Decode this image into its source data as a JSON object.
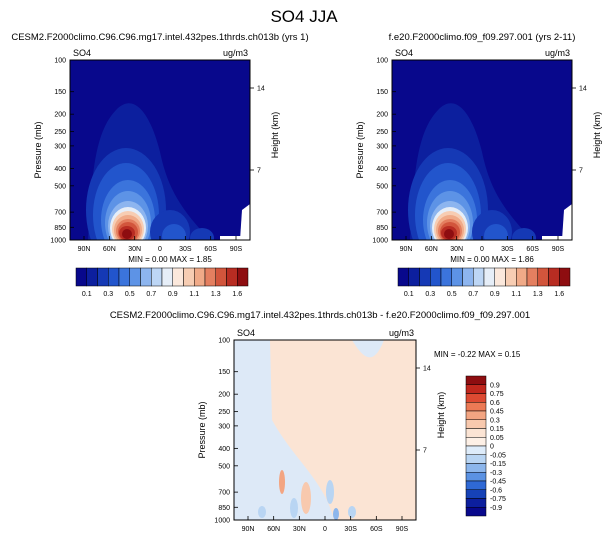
{
  "page_title": "SO4 JJA",
  "chart_data": [
    {
      "type": "heatmap",
      "title": "CESM2.F2000climo.C96.C96.mg17.intel.432pes.1thrds.ch013b (yrs 1)",
      "variable": "SO4",
      "units": "ug/m3",
      "ylabel": "Pressure (mb)",
      "ylabel_right": "Height (km)",
      "xticks": [
        "90N",
        "60N",
        "30N",
        "0",
        "30S",
        "60S",
        "90S"
      ],
      "yticks": [
        "100",
        "150",
        "200",
        "250",
        "300",
        "400",
        "500",
        "700",
        "850",
        "1000"
      ],
      "yticks_right": [
        "14",
        "7"
      ],
      "stats": "MIN =  0.00   MAX =   1.85",
      "min": 0.0,
      "max": 1.85,
      "colorbar_labels": [
        "0.1",
        "0.3",
        "0.5",
        "0.7",
        "0.9",
        "1.1",
        "1.3",
        "1.6"
      ]
    },
    {
      "type": "heatmap",
      "title": "f.e20.F2000climo.f09_f09.297.001 (yrs 2-11)",
      "variable": "SO4",
      "units": "ug/m3",
      "ylabel": "Pressure (mb)",
      "ylabel_right": "Height (km)",
      "xticks": [
        "90N",
        "60N",
        "30N",
        "0",
        "30S",
        "60S",
        "90S"
      ],
      "yticks": [
        "100",
        "150",
        "200",
        "250",
        "300",
        "400",
        "500",
        "700",
        "850",
        "1000"
      ],
      "yticks_right": [
        "14",
        "7"
      ],
      "stats": "MIN =  0.00   MAX =   1.86",
      "min": 0.0,
      "max": 1.86,
      "colorbar_labels": [
        "0.1",
        "0.3",
        "0.5",
        "0.7",
        "0.9",
        "1.1",
        "1.3",
        "1.6"
      ]
    },
    {
      "type": "heatmap",
      "title": "CESM2.F2000climo.C96.C96.mg17.intel.432pes.1thrds.ch013b - f.e20.F2000climo.f09_f09.297.001",
      "variable": "SO4",
      "units": "ug/m3",
      "ylabel": "Pressure (mb)",
      "ylabel_right": "Height (km)",
      "xticks": [
        "90N",
        "60N",
        "30N",
        "0",
        "30S",
        "60S",
        "90S"
      ],
      "yticks": [
        "100",
        "150",
        "200",
        "250",
        "300",
        "400",
        "500",
        "700",
        "850",
        "1000"
      ],
      "yticks_right": [
        "14",
        "7"
      ],
      "stats": "MIN = -0.22   MAX =   0.15",
      "min": -0.22,
      "max": 0.15,
      "colorbar_labels": [
        "0.9",
        "0.75",
        "0.6",
        "0.45",
        "0.3",
        "0.15",
        "0.05",
        "0",
        "-0.05",
        "-0.15",
        "-0.3",
        "-0.45",
        "-0.6",
        "-0.75",
        "-0.9"
      ]
    }
  ],
  "colors": {
    "seq": [
      "#08088c",
      "#0c1f9e",
      "#1539b5",
      "#2255cc",
      "#3b74dc",
      "#5d93e6",
      "#8db5ef",
      "#bdd6f5",
      "#e6eef8",
      "#fbe8dc",
      "#f7cdb3",
      "#f0aa88",
      "#e47f60",
      "#d2553c",
      "#b82c22",
      "#8e0d10"
    ],
    "diff": [
      "#8e0d10",
      "#c1271d",
      "#dd4a32",
      "#ec7a55",
      "#f3a582",
      "#f8c9ae",
      "#fbe4d4",
      "#fdf0e6",
      "#deecfa",
      "#b9d5f3",
      "#8cb6ec",
      "#5b92e3",
      "#2f69d5",
      "#1642b7",
      "#0c1f9e",
      "#08088c"
    ]
  }
}
